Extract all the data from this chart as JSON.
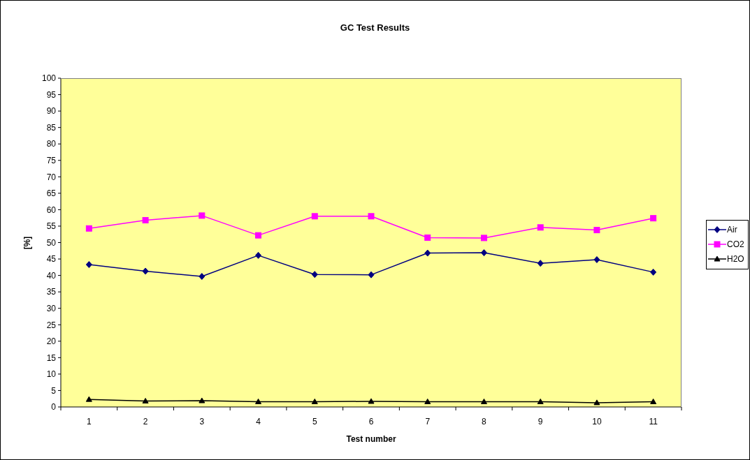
{
  "chart_data": {
    "type": "line",
    "title": "GC Test Results",
    "xlabel": "Test number",
    "ylabel": "[%]",
    "categories": [
      "1",
      "2",
      "3",
      "4",
      "5",
      "6",
      "7",
      "8",
      "9",
      "10",
      "11"
    ],
    "series": [
      {
        "name": "Air",
        "color": "#000080",
        "marker": "diamond",
        "values": [
          43.3,
          41.3,
          39.7,
          46.1,
          40.3,
          40.2,
          46.8,
          46.9,
          43.7,
          44.8,
          41.0
        ]
      },
      {
        "name": "CO2",
        "color": "#ff00ff",
        "marker": "square",
        "values": [
          54.3,
          56.8,
          58.2,
          52.2,
          58.0,
          58.0,
          51.5,
          51.4,
          54.6,
          53.8,
          57.4
        ]
      },
      {
        "name": "H2O",
        "color": "#000000",
        "marker": "triangle",
        "values": [
          2.3,
          1.8,
          1.9,
          1.6,
          1.6,
          1.7,
          1.6,
          1.6,
          1.6,
          1.3,
          1.6
        ]
      }
    ],
    "ylim": [
      0,
      100
    ],
    "yticks": [
      0,
      5,
      10,
      15,
      20,
      25,
      30,
      35,
      40,
      45,
      50,
      55,
      60,
      65,
      70,
      75,
      80,
      85,
      90,
      95,
      100
    ],
    "grid": false,
    "legend": "right",
    "line_style": "solid"
  }
}
